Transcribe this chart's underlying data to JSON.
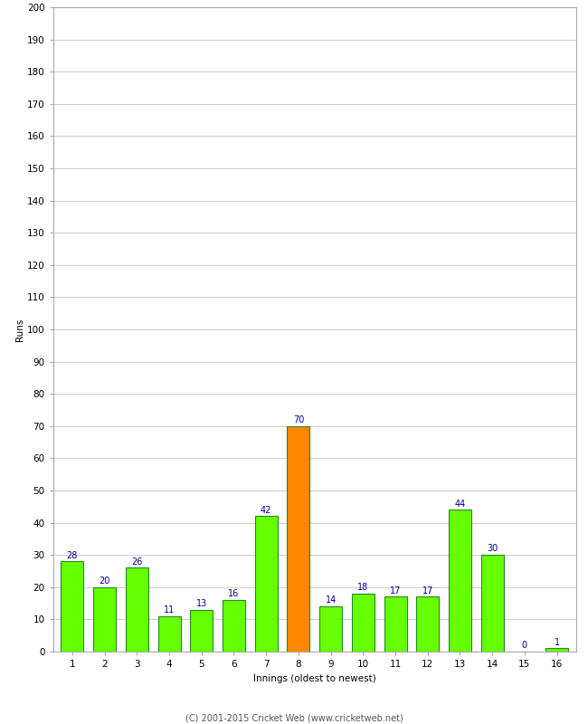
{
  "xlabel": "Innings (oldest to newest)",
  "ylabel": "Runs",
  "categories": [
    1,
    2,
    3,
    4,
    5,
    6,
    7,
    8,
    9,
    10,
    11,
    12,
    13,
    14,
    15,
    16
  ],
  "values": [
    28,
    20,
    26,
    11,
    13,
    16,
    42,
    70,
    14,
    18,
    17,
    17,
    44,
    30,
    0,
    1
  ],
  "bar_colors": [
    "#66ff00",
    "#66ff00",
    "#66ff00",
    "#66ff00",
    "#66ff00",
    "#66ff00",
    "#66ff00",
    "#ff8800",
    "#66ff00",
    "#66ff00",
    "#66ff00",
    "#66ff00",
    "#66ff00",
    "#66ff00",
    "#66ff00",
    "#66ff00"
  ],
  "ylim": [
    0,
    200
  ],
  "yticks": [
    0,
    10,
    20,
    30,
    40,
    50,
    60,
    70,
    80,
    90,
    100,
    110,
    120,
    130,
    140,
    150,
    160,
    170,
    180,
    190,
    200
  ],
  "label_color": "#00008b",
  "background_color": "#ffffff",
  "grid_color": "#cccccc",
  "footer": "(C) 2001-2015 Cricket Web (www.cricketweb.net)",
  "bar_edge_color": "#228b22",
  "label_fontsize": 7,
  "axis_fontsize": 7.5,
  "ylabel_fontsize": 7.5,
  "footer_fontsize": 7,
  "bar_width": 0.7
}
